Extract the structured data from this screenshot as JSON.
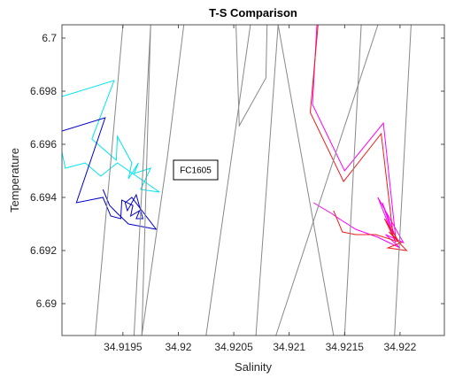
{
  "chart_data": {
    "type": "line",
    "title": "T-S Comparison",
    "xlabel": "Salinity",
    "ylabel": "Temperature",
    "xlim": [
      34.91895,
      34.9224
    ],
    "ylim": [
      6.6888,
      6.7005
    ],
    "xticks": [
      34.9195,
      34.92,
      34.9205,
      34.921,
      34.9215,
      34.922
    ],
    "xtick_labels": [
      "34.9195",
      "34.92",
      "34.9205",
      "34.921",
      "34.9215",
      "34.922"
    ],
    "yticks": [
      6.69,
      6.692,
      6.694,
      6.696,
      6.698,
      6.7
    ],
    "ytick_labels": [
      "6.69",
      "6.692",
      "6.694",
      "6.696",
      "6.698",
      "6.7"
    ],
    "grid": false,
    "box": true,
    "annotation": "FC1605",
    "series": [
      {
        "color": "#00e5ee",
        "x": [
          34.91895,
          34.91942,
          34.91922,
          34.91944,
          34.91945,
          34.91958,
          34.91955,
          34.91964,
          34.9196,
          34.91975,
          34.91966,
          34.91983,
          34.91945,
          34.9193,
          34.91916,
          34.91898,
          34.91895
        ],
        "y": [
          6.6978,
          6.6984,
          6.6962,
          6.6954,
          6.6963,
          6.6953,
          6.6947,
          6.6953,
          6.6949,
          6.6951,
          6.6943,
          6.6942,
          6.6953,
          6.6948,
          6.6953,
          6.6951,
          6.6957
        ]
      },
      {
        "color": "#0000cc",
        "x": [
          34.91895,
          34.91934,
          34.91908,
          34.91932,
          34.91939,
          34.91948,
          34.91949,
          34.91959,
          34.91957,
          34.91965,
          34.91962,
          34.91968,
          34.91962,
          34.91954,
          34.91952,
          34.91958,
          34.9198,
          34.91955,
          34.91945,
          34.91938,
          34.91932
        ],
        "y": [
          6.6965,
          6.697,
          6.6938,
          6.694,
          6.6933,
          6.6932,
          6.6939,
          6.6937,
          6.6933,
          6.6935,
          6.6932,
          6.6932,
          6.6941,
          6.6935,
          6.6938,
          6.694,
          6.6928,
          6.693,
          6.6934,
          6.6937,
          6.6943
        ]
      },
      {
        "color": "#ff00ff",
        "x": [
          34.92125,
          34.92121,
          34.9215,
          34.92185,
          34.92196,
          34.92184,
          34.92196,
          34.9218,
          34.92203,
          34.92187,
          34.922,
          34.9218,
          34.9216,
          34.92145,
          34.92138,
          34.92122
        ],
        "y": [
          6.7005,
          6.6975,
          6.695,
          6.6968,
          6.6925,
          6.6938,
          6.6923,
          6.694,
          6.6923,
          6.6926,
          6.6921,
          6.6925,
          6.6928,
          6.6932,
          6.6934,
          6.6938
        ]
      },
      {
        "color": "#ee1c1c",
        "x": [
          34.92126,
          34.92119,
          34.92149,
          34.92183,
          34.92194,
          34.92186,
          34.92198,
          34.9219,
          34.92206,
          34.92189,
          34.92201,
          34.92178,
          34.9216,
          34.92148,
          34.9214
        ],
        "y": [
          6.7005,
          6.6972,
          6.6946,
          6.6964,
          6.6925,
          6.6932,
          6.6924,
          6.6927,
          6.692,
          6.6921,
          6.6923,
          6.6926,
          6.6926,
          6.6927,
          6.6935
        ]
      },
      {
        "color": "#888888",
        "x": [
          34.91925,
          34.9195
        ],
        "y": [
          6.6888,
          6.7005
        ]
      },
      {
        "color": "#888888",
        "x": [
          34.9196,
          34.91975,
          34.91967,
          34.9199,
          34.92005
        ],
        "y": [
          6.6888,
          6.7005,
          6.6888,
          6.6955,
          6.7005
        ]
      },
      {
        "color": "#888888",
        "x": [
          34.92025,
          34.92065
        ],
        "y": [
          6.6888,
          6.7005
        ]
      },
      {
        "color": "#888888",
        "x": [
          34.92052,
          34.92055,
          34.92079,
          34.9208
        ],
        "y": [
          6.7005,
          6.6967,
          6.6985,
          6.7005
        ]
      },
      {
        "color": "#888888",
        "x": [
          34.9207,
          34.9209,
          34.9214
        ],
        "y": [
          6.6888,
          6.7005,
          6.6888
        ]
      },
      {
        "color": "#888888",
        "x": [
          34.92088,
          34.9218
        ],
        "y": [
          6.6888,
          6.7005
        ]
      },
      {
        "color": "#888888",
        "x": [
          34.9215,
          34.92165
        ],
        "y": [
          6.6888,
          6.7005
        ]
      },
      {
        "color": "#888888",
        "x": [
          34.92195,
          34.9221
        ],
        "y": [
          6.6888,
          6.7005
        ]
      }
    ]
  }
}
